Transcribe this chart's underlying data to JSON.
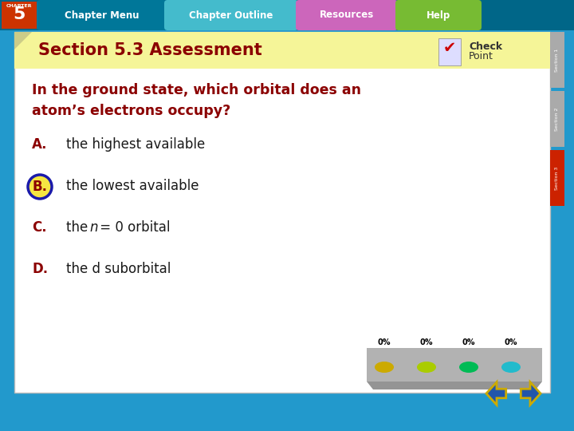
{
  "title": "Section 5.3 Assessment",
  "question_line1": "In the ground state, which orbital does an",
  "question_line2": "atom’s electrons occupy?",
  "answers": [
    {
      "letter": "A.",
      "text": "the highest available",
      "correct": false
    },
    {
      "letter": "B.",
      "text": "the lowest available",
      "correct": true
    },
    {
      "letter": "C.",
      "text_before": "the ",
      "italic": "n",
      "text_after": " = 0 orbital",
      "correct": false
    },
    {
      "letter": "D.",
      "text": "the d suborbital",
      "correct": false
    }
  ],
  "title_bg_color": "#f5f598",
  "title_text_color": "#8b0000",
  "question_color": "#8b0000",
  "answer_letter_color": "#8b0000",
  "answer_text_color": "#1a1a1a",
  "correct_circle_border": "#1a1aaa",
  "correct_circle_fill": "#f5e642",
  "main_bg_color": "#ffffff",
  "outer_bg_color": "#2299cc",
  "nav_bar_color": "#006688",
  "chapter_box_color": "#cc3300",
  "chapter_menu_bg": "#007799",
  "chapter_outline_bg": "#44bbcc",
  "resources_bg": "#cc66bb",
  "help_bg": "#77bb33",
  "side_tab_colors": [
    "#aaaaaa",
    "#aaaaaa",
    "#cc2200"
  ],
  "side_tab_labels": [
    "Section 1",
    "Section 2",
    "Section 3"
  ],
  "poll_bar_bg": "#888888",
  "poll_percentages": [
    "0%",
    "0%",
    "0%",
    "0%"
  ],
  "poll_dot_colors": [
    "#ccaa00",
    "#aacc00",
    "#00bb55",
    "#22bbcc"
  ],
  "nav_arrow_fill": "#2255aa",
  "nav_arrow_border": "#ccaa00"
}
